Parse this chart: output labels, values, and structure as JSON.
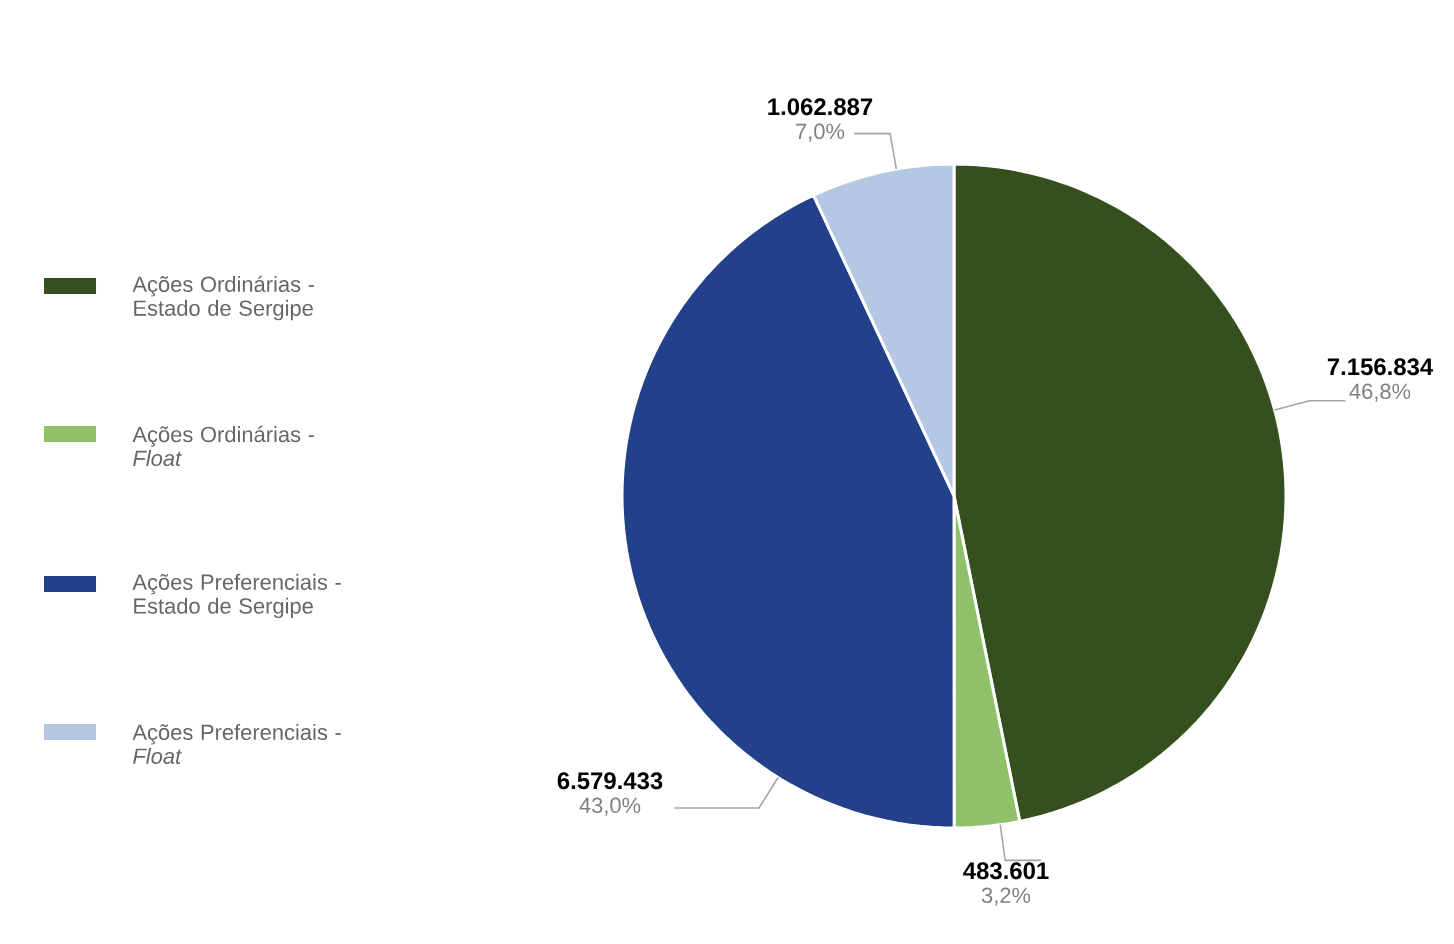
{
  "chart_data": {
    "type": "pie",
    "categories": [
      "Ações Ordinárias - Estado de Sergipe",
      "Ações Ordinárias - *Float*",
      "Ações Preferenciais - Estado de Sergipe",
      "Ações Preferenciais - *Float*"
    ],
    "values": [
      7156834,
      483601,
      6579433,
      1062887
    ],
    "colors": [
      "#364f1e",
      "#8fc06a",
      "#22418a",
      "#b4c7e3"
    ],
    "value_labels": [
      "7.156.834",
      "483.601",
      "6.579.433",
      "1.062.887"
    ],
    "annotations": [
      "46,8%",
      "3,2%",
      "43,0%",
      "7,0%"
    ],
    "legend": "left"
  }
}
